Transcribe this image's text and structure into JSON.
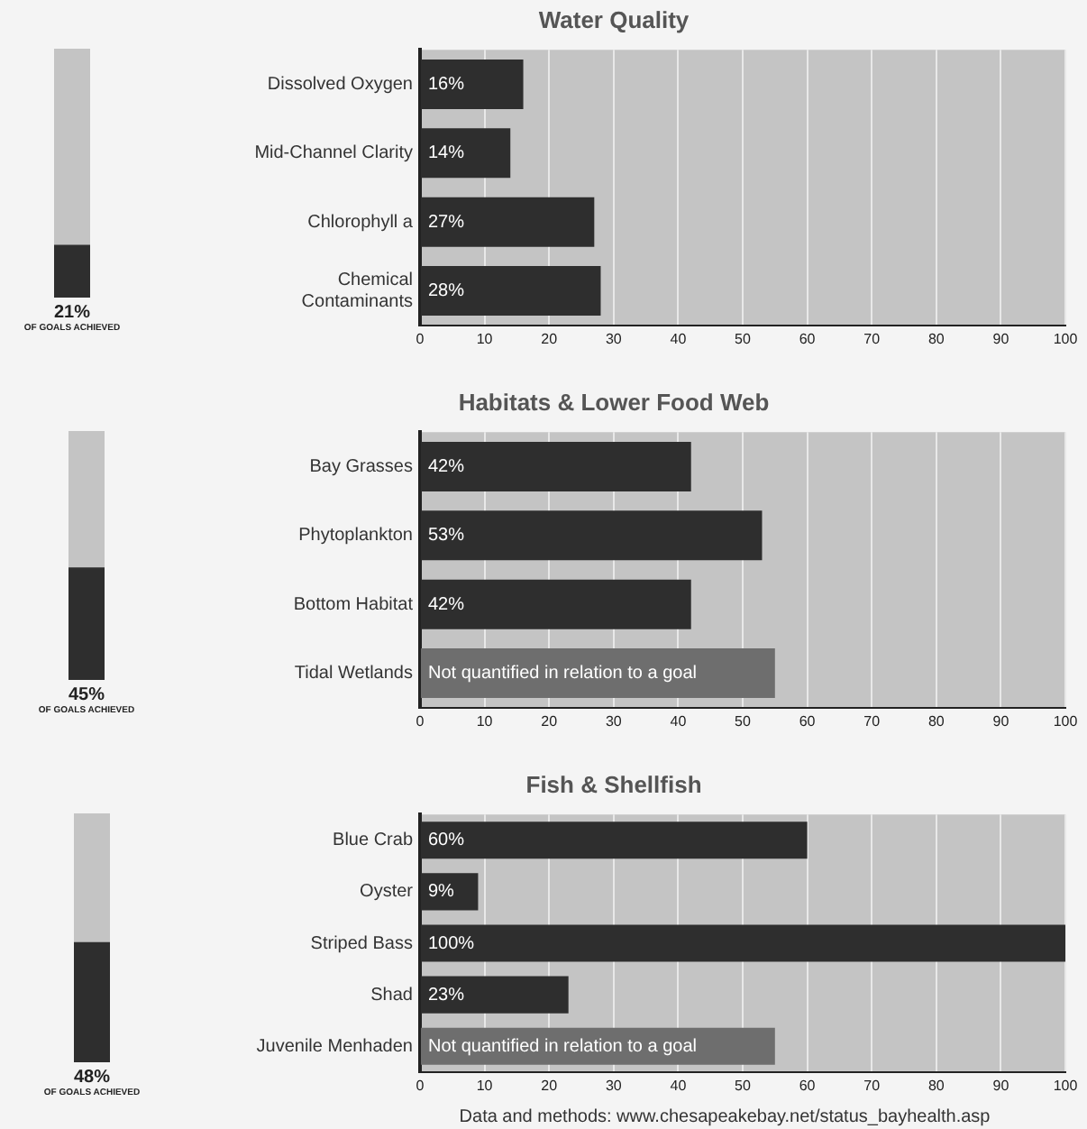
{
  "chart_data": [
    {
      "type": "bar",
      "categories": [
        null
      ],
      "values": [
        21
      ],
      "value_labels": [
        "21%"
      ],
      "color": "#2e2e2e",
      "ylim": [
        0,
        100
      ],
      "tick_labels": false,
      "xlabel": "OF GOALS ACHIEVED"
    },
    {
      "type": "bar",
      "title": "Water Quality",
      "orientation": "horizontal",
      "categories": [
        "Dissolved Oxygen",
        "Mid-Channel Clarity",
        "Chlorophyll a",
        "Chemical Contaminants"
      ],
      "values": [
        16,
        14,
        27,
        28
      ],
      "value_labels": [
        "16%",
        "14%",
        "27%",
        "28%"
      ],
      "colors": [
        "#2e2e2e",
        "#2e2e2e",
        "#2e2e2e",
        "#2e2e2e"
      ],
      "xlim": [
        0,
        100
      ],
      "xticks": [
        0,
        10,
        20,
        30,
        40,
        50,
        60,
        70,
        80,
        90,
        100
      ],
      "grid": "x"
    },
    {
      "type": "bar",
      "categories": [
        null
      ],
      "values": [
        45
      ],
      "value_labels": [
        "45%"
      ],
      "color": "#2e2e2e",
      "ylim": [
        0,
        100
      ],
      "tick_labels": false,
      "xlabel": "OF GOALS ACHIEVED"
    },
    {
      "type": "bar",
      "title": "Habitats & Lower Food Web",
      "orientation": "horizontal",
      "categories": [
        "Bay Grasses",
        "Phytoplankton",
        "Bottom Habitat",
        "Tidal Wetlands"
      ],
      "values": [
        42,
        53,
        42,
        55
      ],
      "value_labels": [
        "42%",
        "53%",
        "42%",
        "Not quantified in relation to a goal"
      ],
      "colors": [
        "#2e2e2e",
        "#2e2e2e",
        "#2e2e2e",
        "#6e6e6e"
      ],
      "xlim": [
        0,
        100
      ],
      "xticks": [
        0,
        10,
        20,
        30,
        40,
        50,
        60,
        70,
        80,
        90,
        100
      ],
      "grid": "x"
    },
    {
      "type": "bar",
      "categories": [
        null
      ],
      "values": [
        48
      ],
      "value_labels": [
        "48%"
      ],
      "color": "#2e2e2e",
      "ylim": [
        0,
        100
      ],
      "tick_labels": false,
      "xlabel": "OF GOALS ACHIEVED"
    },
    {
      "type": "bar",
      "title": "Fish & Shellfish",
      "orientation": "horizontal",
      "categories": [
        "Blue Crab",
        "Oyster",
        "Striped Bass",
        "Shad",
        "Juvenile Menhaden"
      ],
      "values": [
        60,
        9,
        100,
        23,
        55
      ],
      "value_labels": [
        "60%",
        "9%",
        "100%",
        "23%",
        "Not quantified in relation to a goal"
      ],
      "colors": [
        "#2e2e2e",
        "#2e2e2e",
        "#2e2e2e",
        "#2e2e2e",
        "#6e6e6e"
      ],
      "xlim": [
        0,
        100
      ],
      "xticks": [
        0,
        10,
        20,
        30,
        40,
        50,
        60,
        70,
        80,
        90,
        100
      ],
      "grid": "x",
      "annotations": [
        "Data and methods: www.chesapeakebay.net/status_bayhealth.asp"
      ]
    }
  ]
}
